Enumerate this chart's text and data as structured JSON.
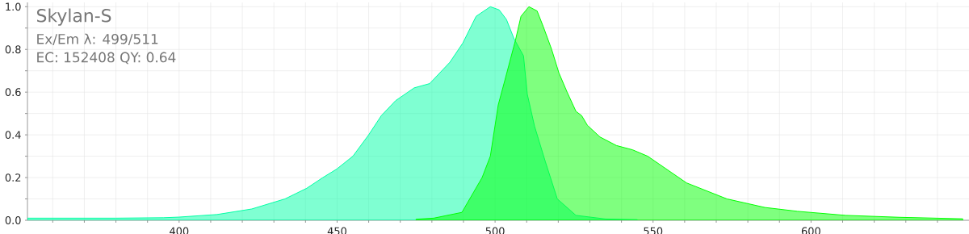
{
  "chart_data": {
    "type": "area",
    "title": "Skylan-S",
    "annotations": [
      "Ex/Em λ: 499/511",
      "EC: 152408   QY: 0.64"
    ],
    "series": [
      {
        "color": "#00ffa5",
        "x": [
          352,
          380,
          395,
          400,
          412,
          423,
          433.5,
          440.4,
          445.5,
          449.9,
          455,
          460,
          464,
          468.5,
          474.4,
          479.3,
          485.7,
          489.8,
          494,
          498.5,
          501.3,
          503.6,
          506,
          509,
          510.2,
          512.5,
          515.9,
          519.7,
          525.6,
          535,
          545
        ],
        "values": [
          0.01,
          0.01,
          0.012,
          0.015,
          0.027,
          0.053,
          0.1,
          0.15,
          0.2,
          0.24,
          0.3,
          0.4,
          0.49,
          0.56,
          0.62,
          0.64,
          0.74,
          0.83,
          0.955,
          1.0,
          0.985,
          0.94,
          0.85,
          0.77,
          0.59,
          0.44,
          0.275,
          0.1,
          0.023,
          0.006,
          0.003
        ]
      },
      {
        "color": "#00ff00",
        "x": [
          475,
          480.6,
          489.5,
          495.9,
          498.5,
          501,
          503,
          506.4,
          508.2,
          510.7,
          513.3,
          515.3,
          517.9,
          520.2,
          522.8,
          525.6,
          527.4,
          529.2,
          533.2,
          538.4,
          543.5,
          548.3,
          560.6,
          573.4,
          585.4,
          595.7,
          611,
          628,
          648
        ],
        "values": [
          0.005,
          0.01,
          0.037,
          0.2,
          0.3,
          0.54,
          0.65,
          0.84,
          0.955,
          1.0,
          0.98,
          0.905,
          0.8,
          0.69,
          0.6,
          0.51,
          0.49,
          0.445,
          0.39,
          0.35,
          0.33,
          0.3,
          0.175,
          0.1,
          0.06,
          0.042,
          0.023,
          0.014,
          0.007
        ]
      }
    ],
    "xlim": [
      352,
      650
    ],
    "ylim": [
      0,
      1.02
    ],
    "xticks": [
      {
        "value": 360,
        "label": null
      },
      {
        "value": 370,
        "label": null
      },
      {
        "value": 380,
        "label": null
      },
      {
        "value": 390,
        "label": null
      },
      400,
      {
        "value": 410,
        "label": null
      },
      {
        "value": 420,
        "label": null
      },
      {
        "value": 430,
        "label": null
      },
      {
        "value": 440,
        "label": null
      },
      450,
      {
        "value": 460,
        "label": null
      },
      {
        "value": 470,
        "label": null
      },
      {
        "value": 480,
        "label": null
      },
      {
        "value": 490,
        "label": null
      },
      500,
      {
        "value": 510,
        "label": null
      },
      {
        "value": 520,
        "label": null
      },
      {
        "value": 530,
        "label": null
      },
      {
        "value": 540,
        "label": null
      },
      550,
      {
        "value": 560,
        "label": null
      },
      {
        "value": 570,
        "label": null
      },
      {
        "value": 580,
        "label": null
      },
      {
        "value": 590,
        "label": null
      },
      600,
      {
        "value": 610,
        "label": null
      },
      {
        "value": 620,
        "label": null
      },
      {
        "value": 630,
        "label": null
      },
      {
        "value": 640,
        "label": null
      }
    ],
    "yticks": [
      {
        "value": 0,
        "label": "0.0"
      },
      {
        "value": 0.1,
        "label": null
      },
      {
        "value": 0.2,
        "label": "0.2"
      },
      {
        "value": 0.3,
        "label": null
      },
      {
        "value": 0.4,
        "label": "0.4"
      },
      {
        "value": 0.5,
        "label": null
      },
      {
        "value": 0.6,
        "label": "0.6"
      },
      {
        "value": 0.7,
        "label": null
      },
      {
        "value": 0.8,
        "label": "0.8"
      },
      {
        "value": 0.9,
        "label": null
      },
      {
        "value": 1.0,
        "label": "1.0"
      }
    ],
    "grid": true
  }
}
